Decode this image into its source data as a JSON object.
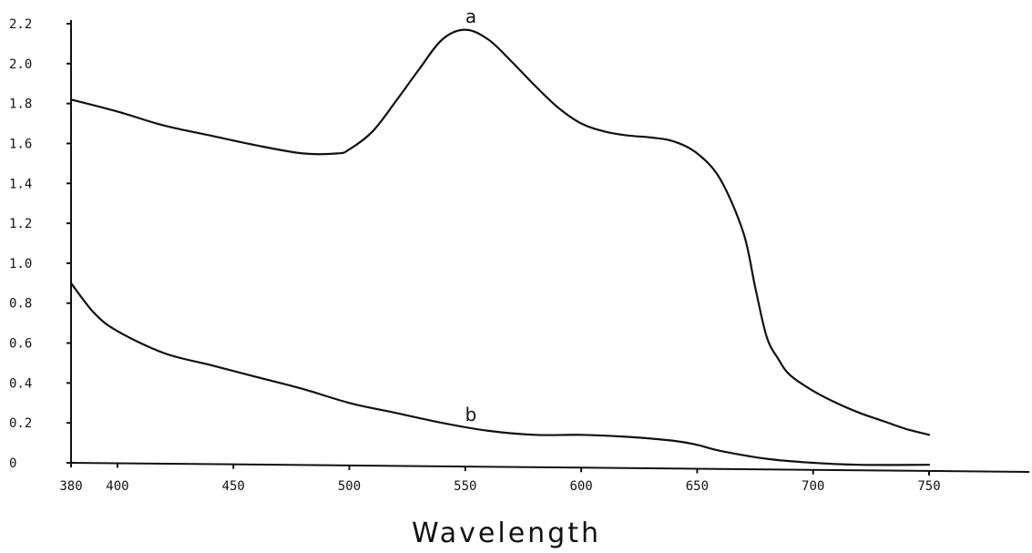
{
  "chart_data": {
    "type": "line",
    "xlabel": "Wavelength",
    "ylabel": "",
    "xlim": [
      380,
      790
    ],
    "ylim": [
      0,
      2.2
    ],
    "x_ticks": [
      380,
      400,
      450,
      500,
      550,
      600,
      650,
      700,
      750
    ],
    "x_tick_labels": [
      "380",
      "400",
      "450",
      "500",
      "550",
      "600",
      "650",
      "700",
      "750"
    ],
    "y_ticks": [
      0,
      0.2,
      0.4,
      0.6,
      0.8,
      1.0,
      1.2,
      1.4,
      1.6,
      1.8,
      2.0,
      2.2
    ],
    "y_tick_labels": [
      "0",
      "0.2",
      "0.4",
      "0.6",
      "0.8",
      "1.0",
      "1.2",
      "1.4",
      "1.6",
      "1.8",
      "2.0",
      "2.2"
    ],
    "grid": false,
    "series": [
      {
        "name": "a",
        "color": "#111111",
        "x": [
          380,
          400,
          420,
          440,
          460,
          480,
          495,
          500,
          510,
          520,
          530,
          540,
          550,
          560,
          570,
          580,
          590,
          600,
          610,
          620,
          630,
          640,
          650,
          660,
          670,
          675,
          680,
          685,
          690,
          700,
          710,
          720,
          730,
          740,
          750
        ],
        "y": [
          1.82,
          1.76,
          1.69,
          1.64,
          1.59,
          1.55,
          1.55,
          1.57,
          1.66,
          1.81,
          1.97,
          2.12,
          2.17,
          2.12,
          2.01,
          1.89,
          1.78,
          1.7,
          1.66,
          1.64,
          1.63,
          1.61,
          1.55,
          1.42,
          1.15,
          0.88,
          0.63,
          0.52,
          0.44,
          0.36,
          0.3,
          0.25,
          0.21,
          0.17,
          0.14
        ]
      },
      {
        "name": "b",
        "color": "#111111",
        "x": [
          380,
          390,
          400,
          420,
          440,
          460,
          480,
          500,
          520,
          540,
          560,
          580,
          600,
          620,
          640,
          650,
          660,
          680,
          700,
          720,
          750
        ],
        "y": [
          0.9,
          0.75,
          0.66,
          0.55,
          0.49,
          0.43,
          0.37,
          0.3,
          0.25,
          0.2,
          0.16,
          0.14,
          0.14,
          0.13,
          0.11,
          0.09,
          0.06,
          0.02,
          0.0,
          -0.01,
          -0.01
        ]
      }
    ]
  }
}
